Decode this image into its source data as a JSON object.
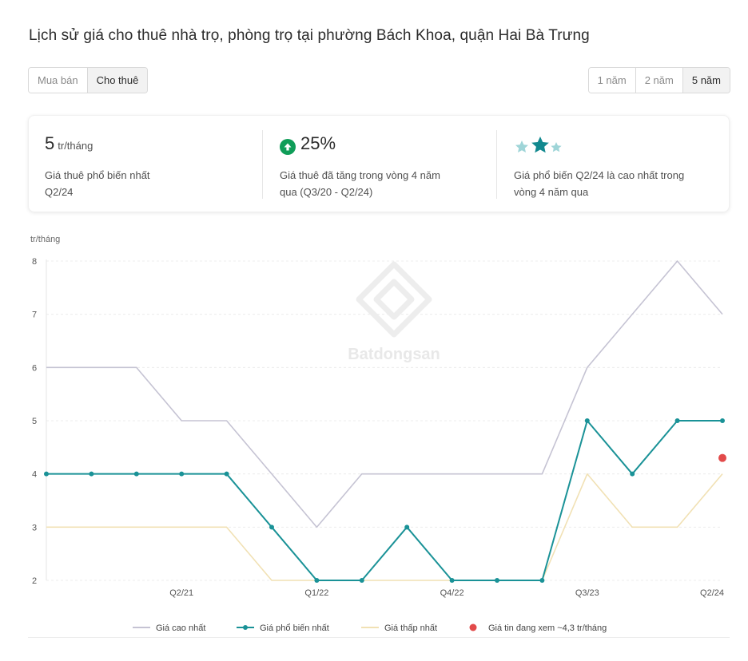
{
  "page": {
    "title": "Lịch sử giá cho thuê nhà trọ, phòng trọ tại phường Bách Khoa, quận Hai Bà Trưng"
  },
  "tabs_type": [
    {
      "label": "Mua bán",
      "active": false
    },
    {
      "label": "Cho thuê",
      "active": true
    }
  ],
  "tabs_range": [
    {
      "label": "1 năm",
      "active": false
    },
    {
      "label": "2 năm",
      "active": false
    },
    {
      "label": "5 năm",
      "active": true
    }
  ],
  "stats": {
    "popular": {
      "value": "5",
      "unit": "tr/tháng",
      "line1": "Giá thuê phổ biến nhất",
      "line2": "Q2/24"
    },
    "change": {
      "value": "25%",
      "line1": "Giá thuê đã tăng trong vòng 4 năm",
      "line2": "qua (Q3/20 - Q2/24)",
      "icon": "arrow-up-circle-icon",
      "color": "#0f9d58"
    },
    "rank": {
      "line1": "Giá phổ biến Q2/24 là cao nhất trong",
      "line2": "vòng 4 năm qua",
      "icon": "stars-icon",
      "star_color": "#12898f",
      "star_light_color": "#9fd5d8"
    }
  },
  "watermark": "Batdongsan",
  "chart_data": {
    "type": "line",
    "ylabel": "tr/tháng",
    "ylim": [
      2,
      8
    ],
    "yticks": [
      2,
      3,
      4,
      5,
      6,
      7,
      8
    ],
    "x": [
      "Q3/20",
      "Q4/20",
      "Q1/21",
      "Q2/21",
      "Q3/21",
      "Q4/21",
      "Q1/22",
      "Q2/22",
      "Q3/22",
      "Q4/22",
      "Q1/23",
      "Q2/23",
      "Q3/23",
      "Q4/23",
      "Q1/24",
      "Q2/24"
    ],
    "xtick_labels": [
      "Q2/21",
      "Q1/22",
      "Q4/22",
      "Q3/23",
      "Q2/24"
    ],
    "grid": true,
    "legend_position": "bottom",
    "series": [
      {
        "name": "Giá cao nhất",
        "color": "#c5c3d3",
        "markers": false,
        "values": [
          6,
          6,
          6,
          5,
          5,
          4,
          3,
          4,
          4,
          4,
          4,
          4,
          6,
          7,
          8,
          7
        ]
      },
      {
        "name": "Giá phổ biến nhất",
        "color": "#1a9297",
        "markers": true,
        "values": [
          4,
          4,
          4,
          4,
          4,
          3,
          2,
          2,
          3,
          2,
          2,
          2,
          5,
          4,
          5,
          5
        ]
      },
      {
        "name": "Giá thấp nhất",
        "color": "#f1e1b4",
        "markers": false,
        "values": [
          3,
          3,
          3,
          3,
          3,
          2,
          2,
          2,
          2,
          2,
          2,
          2,
          4,
          3,
          3,
          4
        ]
      }
    ],
    "current_listing": {
      "label": "Giá tin đang xem ~4,3 tr/tháng",
      "x": "Q2/24",
      "value": 4.3,
      "color": "#e24a4a"
    }
  }
}
